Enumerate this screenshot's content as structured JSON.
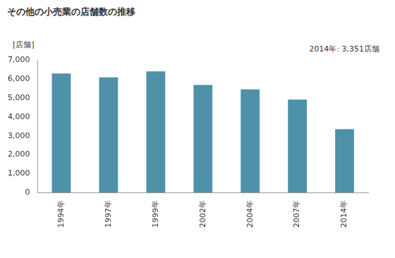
{
  "chart_data": {
    "type": "bar",
    "title": "その他の小売業の店舗数の推移",
    "ylabel": "[店舗]",
    "annotations": [
      "2014年: 3,351店舗"
    ],
    "categories": [
      "1994年",
      "1997年",
      "1999年",
      "2002年",
      "2004年",
      "2007年",
      "2014年"
    ],
    "values": [
      6300,
      6100,
      6420,
      5700,
      5460,
      4920,
      3351
    ],
    "color": "#4e91a8",
    "ylim": [
      0,
      7000
    ],
    "yticks": [
      0,
      {
        "value": 1000,
        "label": "1,000"
      },
      {
        "value": 2000,
        "label": "2,000"
      },
      {
        "value": 3000,
        "label": "3,000"
      },
      {
        "value": 4000,
        "label": "4,000"
      },
      {
        "value": 5000,
        "label": "5,000"
      },
      {
        "value": 6000,
        "label": "6,000"
      },
      {
        "value": 7000,
        "label": "7,000"
      }
    ],
    "grid": false
  }
}
